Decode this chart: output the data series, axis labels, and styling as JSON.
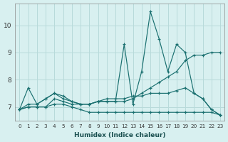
{
  "xlabel": "Humidex (Indice chaleur)",
  "bg_color": "#d8f0f0",
  "grid_color": "#b8dada",
  "line_color": "#1a7070",
  "xlim": [
    -0.5,
    23.5
  ],
  "ylim": [
    6.5,
    10.8
  ],
  "yticks": [
    7,
    8,
    9,
    10
  ],
  "xticks": [
    0,
    1,
    2,
    3,
    4,
    5,
    6,
    7,
    8,
    9,
    10,
    11,
    12,
    13,
    14,
    15,
    16,
    17,
    18,
    19,
    20,
    21,
    22,
    23
  ],
  "series": [
    [
      6.9,
      7.7,
      7.1,
      7.3,
      7.5,
      7.3,
      7.2,
      7.1,
      7.1,
      7.2,
      7.2,
      7.2,
      9.3,
      7.1,
      8.3,
      10.5,
      9.5,
      8.3,
      9.3,
      9.0,
      7.5,
      7.3,
      6.9,
      6.7
    ],
    [
      6.9,
      7.0,
      7.0,
      7.0,
      7.3,
      7.2,
      7.1,
      7.1,
      7.1,
      7.2,
      7.2,
      7.2,
      7.2,
      7.3,
      7.5,
      7.7,
      7.9,
      8.1,
      8.3,
      8.7,
      8.9,
      8.9,
      9.0,
      9.0
    ],
    [
      6.9,
      7.1,
      7.1,
      7.3,
      7.5,
      7.4,
      7.2,
      7.1,
      7.1,
      7.2,
      7.3,
      7.3,
      7.3,
      7.4,
      7.4,
      7.5,
      7.5,
      7.5,
      7.6,
      7.7,
      7.5,
      7.3,
      6.9,
      6.7
    ],
    [
      6.9,
      7.0,
      7.0,
      7.0,
      7.1,
      7.1,
      7.0,
      6.9,
      6.8,
      6.8,
      6.8,
      6.8,
      6.8,
      6.8,
      6.8,
      6.8,
      6.8,
      6.8,
      6.8,
      6.8,
      6.8,
      6.8,
      6.8,
      6.7
    ]
  ]
}
